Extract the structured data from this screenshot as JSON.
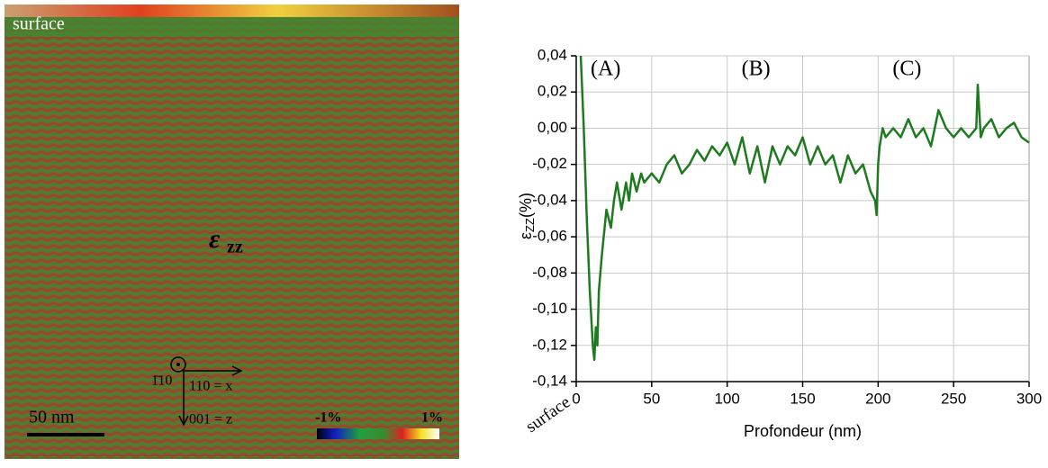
{
  "strain_map": {
    "surface": "surface",
    "symbol": "ε",
    "symbol_sub": "zz",
    "scale": "50 nm",
    "axis_y": "1̄10",
    "axis_x": "110 = x",
    "axis_z": "001 = z",
    "min": "-1%",
    "max": "1%"
  },
  "chart_data": {
    "type": "line",
    "ylabel": "ε",
    "ylabel_sub": "ZZ",
    "ylabel_unit": "(%)",
    "xlabel": "Profondeur (nm)",
    "surface_label": "surface",
    "annotations": [
      "(A)",
      "(B)",
      "(C)"
    ],
    "xlim": [
      0,
      300
    ],
    "xticks": [
      0,
      50,
      100,
      150,
      200,
      250,
      300
    ],
    "ylim": [
      -0.14,
      0.04
    ],
    "yticks": [
      {
        "value": -0.14,
        "label": "-0,14"
      },
      {
        "value": -0.12,
        "label": "-0,12"
      },
      {
        "value": -0.1,
        "label": "-0,10"
      },
      {
        "value": -0.08,
        "label": "-0,08"
      },
      {
        "value": -0.06,
        "label": "-0,06"
      },
      {
        "value": -0.04,
        "label": "-0,04"
      },
      {
        "value": -0.02,
        "label": "-0,02"
      },
      {
        "value": 0,
        "label": "0,00"
      },
      {
        "value": 0.02,
        "label": "0,02"
      },
      {
        "value": 0.04,
        "label": "0,04"
      }
    ],
    "grid": true,
    "series": [
      {
        "color": "#1e7a1e",
        "x": [
          3,
          5,
          7,
          9,
          11,
          12,
          13,
          14,
          15,
          17,
          20,
          23,
          25,
          27,
          30,
          33,
          35,
          37,
          40,
          43,
          45,
          50,
          55,
          60,
          65,
          70,
          75,
          80,
          85,
          90,
          95,
          100,
          105,
          110,
          115,
          120,
          125,
          130,
          135,
          140,
          145,
          150,
          155,
          160,
          165,
          170,
          175,
          180,
          185,
          190,
          195,
          198,
          199,
          200,
          201,
          203,
          205,
          210,
          215,
          220,
          225,
          230,
          235,
          240,
          245,
          250,
          255,
          260,
          265,
          266,
          268,
          270,
          275,
          280,
          285,
          290,
          295,
          300
        ],
        "values": [
          0.04,
          0.0,
          -0.05,
          -0.09,
          -0.12,
          -0.128,
          -0.11,
          -0.12,
          -0.09,
          -0.07,
          -0.045,
          -0.055,
          -0.04,
          -0.03,
          -0.045,
          -0.03,
          -0.04,
          -0.025,
          -0.035,
          -0.025,
          -0.03,
          -0.025,
          -0.03,
          -0.02,
          -0.015,
          -0.025,
          -0.02,
          -0.012,
          -0.018,
          -0.01,
          -0.015,
          -0.008,
          -0.02,
          -0.005,
          -0.025,
          -0.01,
          -0.03,
          -0.01,
          -0.02,
          -0.01,
          -0.015,
          -0.005,
          -0.02,
          -0.01,
          -0.02,
          -0.015,
          -0.03,
          -0.015,
          -0.025,
          -0.02,
          -0.035,
          -0.04,
          -0.048,
          -0.02,
          -0.01,
          0.0,
          -0.005,
          0.0,
          -0.005,
          0.005,
          -0.005,
          0.0,
          -0.01,
          0.01,
          0.0,
          -0.005,
          0.0,
          -0.005,
          0.0,
          0.024,
          -0.005,
          0.0,
          0.005,
          -0.005,
          0.0,
          0.003,
          -0.005,
          -0.008
        ]
      }
    ]
  }
}
